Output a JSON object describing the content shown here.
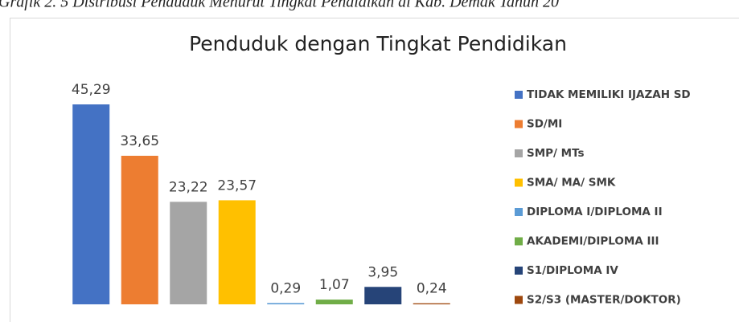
{
  "chart_data": {
    "type": "bar",
    "caption": "Grafik 2. 5 Distribusi Penduduk Menurut Tingkat Pendidikan di Kab. Demak Tahun 20",
    "title": "Penduduk dengan Tingkat Pendidikan",
    "categories": [
      "TIDAK MEMILIKI IJAZAH SD",
      "SD/MI",
      "SMP/ MTs",
      "SMA/ MA/ SMK",
      "DIPLOMA I/DIPLOMA II",
      "AKADEMI/DIPLOMA III",
      "S1/DIPLOMA IV",
      "S2/S3 (MASTER/DOKTOR)"
    ],
    "values": [
      45.29,
      33.65,
      23.22,
      23.57,
      0.29,
      1.07,
      3.95,
      0.24
    ],
    "value_labels": [
      "45,29",
      "33,65",
      "23,22",
      "23,57",
      "0,29",
      "1,07",
      "3,95",
      "0,24"
    ],
    "colors": [
      "#4472c4",
      "#ed7d31",
      "#a5a5a5",
      "#ffc000",
      "#5b9bd5",
      "#70ad47",
      "#264478",
      "#9e480e"
    ],
    "legend": "right"
  }
}
